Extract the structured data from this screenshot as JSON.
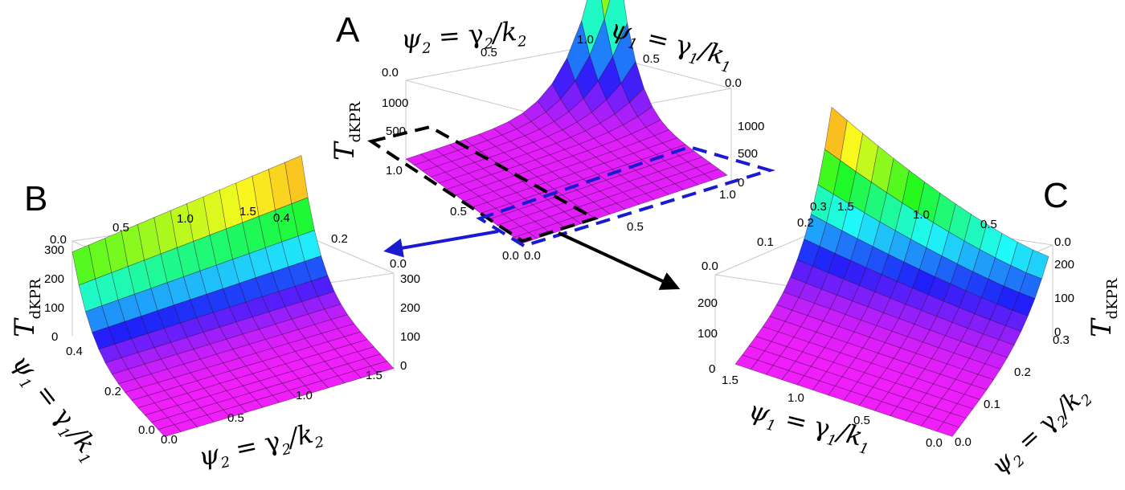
{
  "figure": {
    "colors": {
      "box_a": "#000000",
      "box_b": "#1a1ad0",
      "arrow_b": "#1a1ad0",
      "arrow_c": "#000000"
    }
  },
  "chart_data": [
    {
      "panel": "A",
      "type": "surface3d",
      "title": "A",
      "surface": "T_dKPR(psi1, psi2)",
      "axes": {
        "psi1": {
          "label_var": "ψ",
          "label_sub": "1",
          "label_rhs": " = γ",
          "label_rhs_sub": "1",
          "label_den": "/k",
          "label_den_sub": "1",
          "range": [
            0,
            1
          ],
          "ticks": [
            "1.0",
            "0.5",
            "0.0"
          ],
          "front_ticks": [
            "0.0",
            "0.5",
            "1.0"
          ]
        },
        "psi2": {
          "label_var": "ψ",
          "label_sub": "2",
          "label_rhs": " = γ",
          "label_rhs_sub": "2",
          "label_den": "/k",
          "label_den_sub": "2",
          "range": [
            0,
            1
          ],
          "ticks": [
            "0.0",
            "0.5",
            "1.0"
          ],
          "front_ticks": [
            "1.0",
            "0.5",
            "0.0"
          ]
        },
        "T": {
          "label": "T",
          "label_sub": "dKPR",
          "range": [
            0,
            1300
          ],
          "left_ticks": [
            "1000",
            "500"
          ],
          "right_ticks": [
            "1000",
            "500",
            "0"
          ]
        }
      },
      "peak_value": 1300,
      "zoom_boxes": [
        {
          "name": "region-B",
          "color": "#000000",
          "style": "dashed"
        },
        {
          "name": "region-C",
          "color": "#1a1ad0",
          "style": "dashed"
        }
      ]
    },
    {
      "panel": "B",
      "type": "surface3d",
      "title": "B",
      "axes": {
        "psi1": {
          "label_var": "ψ",
          "label_sub": "1",
          "label_rhs": " = γ",
          "label_rhs_sub": "1",
          "label_den": "/k",
          "label_den_sub": "1",
          "range": [
            0,
            0.4
          ],
          "ticks": [
            "0.4",
            "0.2",
            "0.0"
          ],
          "back_ticks": [
            "0.4",
            "0.2",
            "0.0"
          ]
        },
        "psi2": {
          "label_var": "ψ",
          "label_sub": "2",
          "label_rhs": " = γ",
          "label_rhs_sub": "2",
          "label_den": "/k",
          "label_den_sub": "2",
          "range": [
            0,
            1.5
          ],
          "ticks": [
            "0.0",
            "0.5",
            "1.0",
            "1.5"
          ],
          "back_ticks": [
            "0.0",
            "0.5",
            "1.0",
            "1.5"
          ]
        },
        "T": {
          "label": "T",
          "label_sub": "dKPR",
          "range": [
            0,
            300
          ],
          "left_ticks": [
            "0",
            "100",
            "200",
            "300"
          ],
          "right_ticks": [
            "300",
            "200",
            "100",
            "0"
          ]
        }
      },
      "peak_value": 300
    },
    {
      "panel": "C",
      "type": "surface3d",
      "title": "C",
      "axes": {
        "psi1": {
          "label_var": "ψ",
          "label_sub": "1",
          "label_rhs": " = γ",
          "label_rhs_sub": "1",
          "label_den": "/k",
          "label_den_sub": "1",
          "range": [
            0,
            1.5
          ],
          "ticks": [
            "1.5",
            "1.0",
            "0.5",
            "0.0"
          ],
          "back_ticks": [
            "1.5",
            "1.0",
            "0.5"
          ]
        },
        "psi2": {
          "label_var": "ψ",
          "label_sub": "2",
          "label_rhs": " = γ",
          "label_rhs_sub": "2",
          "label_den": "/k",
          "label_den_sub": "2",
          "range": [
            0,
            0.3
          ],
          "ticks": [
            "0.0",
            "0.1",
            "0.2",
            "0.3"
          ],
          "back_ticks": [
            "0.3",
            "0.2",
            "0.1",
            "0.0"
          ]
        },
        "T": {
          "label": "T",
          "label_sub": "dKPR",
          "range": [
            0,
            220
          ],
          "left_ticks": [
            "0",
            "100",
            "200"
          ],
          "right_ticks": [
            "0.0",
            "100",
            "200"
          ]
        }
      },
      "peak_value": 220
    }
  ]
}
